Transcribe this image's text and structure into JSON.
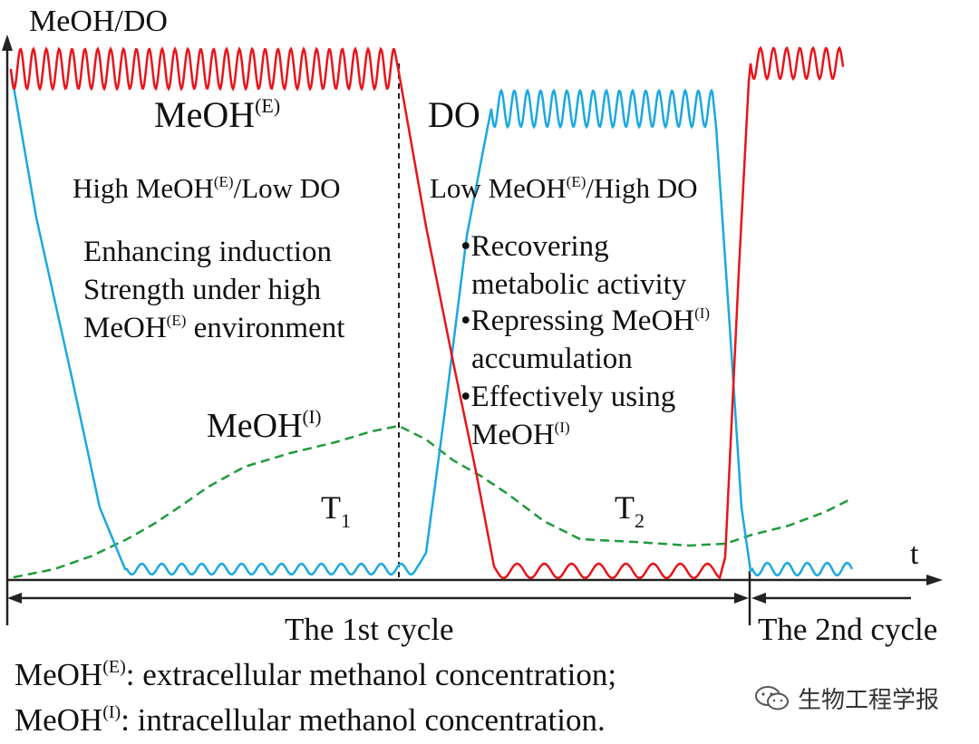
{
  "diagram": {
    "y_axis_label": "MeOH/DO",
    "x_axis_label": "t",
    "meoh_e_label": {
      "base": "MeOH",
      "sup": "(E)"
    },
    "do_label": "DO",
    "phase1_condition": {
      "prefix": "High MeOH",
      "sup": "(E)",
      "suffix": "/Low DO"
    },
    "phase2_condition": {
      "prefix": "Low MeOH",
      "sup": "(E)",
      "suffix": "/High DO"
    },
    "phase1_description": {
      "line1": "Enhancing induction",
      "line2": "Strength under high",
      "line3_prefix": "MeOH",
      "line3_sup": "(E)",
      "line3_suffix": " environment"
    },
    "phase2_bullets": {
      "b1_line1": "•Recovering",
      "b1_line2": "metabolic activity",
      "b2_prefix": "•Repressing MeOH",
      "b2_sup": "(I)",
      "b2_line2": "accumulation",
      "b3_line1": "•Effectively using",
      "b3_line2_prefix": "MeOH",
      "b3_line2_sup": "(I)"
    },
    "meoh_i_label": {
      "base": "MeOH",
      "sup": "(I)"
    },
    "t1_label": {
      "base": "T",
      "sub": "1"
    },
    "t2_label": {
      "base": "T",
      "sub": "2"
    },
    "cycle1_label": "The 1st cycle",
    "cycle2_label": "The 2nd cycle",
    "legend_e": {
      "prefix": "MeOH",
      "sup": "(E)",
      "suffix": ": extracellular methanol concentration;"
    },
    "legend_i": {
      "prefix": "MeOH",
      "sup": "(I)",
      "suffix": ": intracellular methanol concentration."
    }
  },
  "colors": {
    "meoh_e": "#e8141b",
    "do": "#1ba8e0",
    "meoh_i": "#1f9a3c",
    "axis": "#222222"
  },
  "watermark": {
    "text": "生物工程学报",
    "icon": "wechat-icon"
  }
}
